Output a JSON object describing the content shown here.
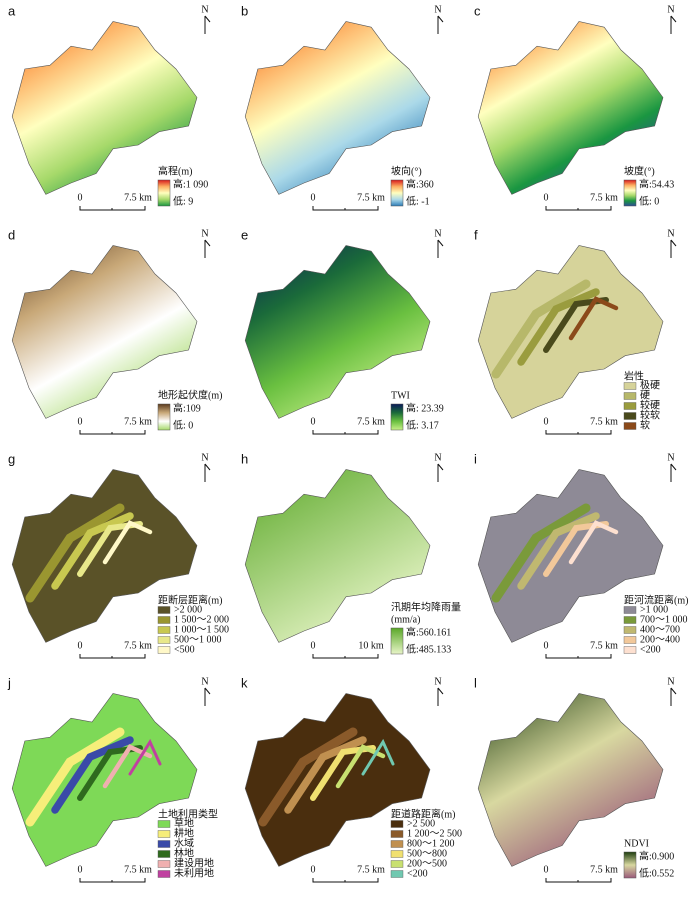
{
  "panels": [
    {
      "letter": "a",
      "north": "N",
      "scale": [
        "0",
        "7.5 km"
      ],
      "legend": {
        "type": "gradient",
        "title": "高程(m)",
        "high": "高:1 090",
        "low": "低: 9",
        "colors": [
          "#d7191c",
          "#fdae61",
          "#ffffbf",
          "#a6d96a",
          "#1a9641"
        ]
      }
    },
    {
      "letter": "b",
      "north": "N",
      "scale": [
        "0",
        "7.5 km"
      ],
      "legend": {
        "type": "gradient",
        "title": "坡向(°)",
        "high": "高:360",
        "low": "低: -1",
        "colors": [
          "#d7191c",
          "#fdae61",
          "#ffffbf",
          "#abd9e9",
          "#2c7bb6"
        ]
      }
    },
    {
      "letter": "c",
      "north": "N",
      "scale": [
        "0",
        "7.5 km"
      ],
      "legend": {
        "type": "gradient",
        "title": "坡度(°)",
        "high": "高:54.43",
        "low": "低: 0",
        "colors": [
          "#d7191c",
          "#fdae61",
          "#ffffbf",
          "#a6d96a",
          "#1a9641",
          "#2c4b96"
        ]
      }
    },
    {
      "letter": "d",
      "north": "N",
      "scale": [
        "0",
        "7.5 km"
      ],
      "legend": {
        "type": "gradient",
        "title": "地形起伏度(m)",
        "high": "高:109",
        "low": "低: 0",
        "colors": [
          "#5a3a1e",
          "#c8a878",
          "#ffffff",
          "#a6d96a"
        ]
      }
    },
    {
      "letter": "e",
      "north": "N",
      "scale": [
        "0",
        "7.5 km"
      ],
      "legend": {
        "type": "gradient",
        "title": "TWI",
        "high": "高: 23.39",
        "low": "低: 3.17",
        "colors": [
          "#0a1a5a",
          "#1a6a3a",
          "#6ac040",
          "#c8f08a"
        ]
      }
    },
    {
      "letter": "f",
      "north": "N",
      "scale": [
        "0",
        "7.5 km"
      ],
      "legend": {
        "type": "classes",
        "title": "岩性",
        "items": [
          {
            "label": "极硬",
            "color": "#d6d39a"
          },
          {
            "label": "硬",
            "color": "#b7b86a"
          },
          {
            "label": "较硬",
            "color": "#9a9c3e"
          },
          {
            "label": "较软",
            "color": "#4a4a1c"
          },
          {
            "label": "软",
            "color": "#8b4a1a"
          }
        ]
      }
    },
    {
      "letter": "g",
      "north": "N",
      "scale": [
        "0",
        "7.5 km"
      ],
      "legend": {
        "type": "classes",
        "title": "距断层距离(m)",
        "items": [
          {
            "label": ">2 000",
            "color": "#5a5228"
          },
          {
            "label": "1 500～2 000",
            "color": "#9a9630"
          },
          {
            "label": "1 000～1 500",
            "color": "#c8c850"
          },
          {
            "label": "500～1 000",
            "color": "#e8e88a"
          },
          {
            "label": "<500",
            "color": "#fff8c8"
          }
        ]
      }
    },
    {
      "letter": "h",
      "north": "N",
      "scale": [
        "0",
        "10 km"
      ],
      "legend": {
        "type": "gradient",
        "title": "汛期年均降雨量",
        "unit": "(mm/a)",
        "high": "高:560.161",
        "low": "低:485.133",
        "colors": [
          "#5aa828",
          "#e8f5c8"
        ]
      }
    },
    {
      "letter": "i",
      "north": "N",
      "scale": [
        "0",
        "7.5 km"
      ],
      "legend": {
        "type": "classes",
        "title": "距河流距离(m)",
        "items": [
          {
            "label": ">1 000",
            "color": "#8e8a96"
          },
          {
            "label": "700～1 000",
            "color": "#7a9a3a"
          },
          {
            "label": "400～700",
            "color": "#c0b870"
          },
          {
            "label": "200～400",
            "color": "#f2c89a"
          },
          {
            "label": "<200",
            "color": "#fde0d0"
          }
        ]
      }
    },
    {
      "letter": "j",
      "north": "N",
      "scale": [
        "0",
        "7.5 km"
      ],
      "legend": {
        "type": "classes",
        "title": "土地利用类型",
        "items": [
          {
            "label": "草地",
            "color": "#7ed957"
          },
          {
            "label": "耕地",
            "color": "#f6ee7a"
          },
          {
            "label": "水域",
            "color": "#3a4aa8"
          },
          {
            "label": "林地",
            "color": "#2f6a1e"
          },
          {
            "label": "建设用地",
            "color": "#f0b0b0"
          },
          {
            "label": "未利用地",
            "color": "#c040a0"
          }
        ]
      }
    },
    {
      "letter": "k",
      "north": "N",
      "scale": [
        "0",
        "7.5 km"
      ],
      "legend": {
        "type": "classes",
        "title": "距道路距离(m)",
        "items": [
          {
            "label": ">2 500",
            "color": "#4a2e0e"
          },
          {
            "label": "1 200～2 500",
            "color": "#8a5a2a"
          },
          {
            "label": "800～1 200",
            "color": "#c09050"
          },
          {
            "label": "500～800",
            "color": "#f0e070"
          },
          {
            "label": "200～500",
            "color": "#c8e070"
          },
          {
            "label": "<200",
            "color": "#70c8b0"
          }
        ]
      }
    },
    {
      "letter": "l",
      "north": "N",
      "scale": [
        "0",
        "7.5 km"
      ],
      "legend": {
        "type": "gradient",
        "title": "NDVI",
        "high": "高:0.900",
        "low": "低:0.552",
        "colors": [
          "#1e3d0f",
          "#d8d8a0",
          "#9a5a7a"
        ]
      }
    }
  ]
}
